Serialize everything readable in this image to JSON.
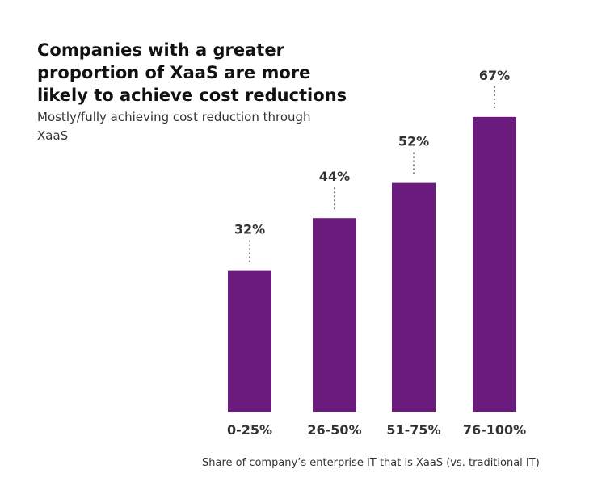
{
  "title": "Companies with a greater proportion of XaaS are more likely to achieve cost reductions",
  "subtitle": "Mostly/fully achieving cost reduction through XaaS",
  "colors": {
    "bar": "#6a1b7d",
    "label": "#333333",
    "connector": "#555555"
  },
  "chart_data": {
    "type": "bar",
    "title": "Companies with a greater proportion of XaaS are more likely to achieve cost reductions",
    "subtitle": "Mostly/fully achieving cost reduction through XaaS",
    "xlabel": "Share of company’s enterprise IT that is XaaS (vs. traditional IT)",
    "ylabel": "",
    "categories": [
      "0-25%",
      "26-50%",
      "51-75%",
      "76-100%"
    ],
    "values": [
      32,
      44,
      52,
      67
    ],
    "data_labels": [
      "32%",
      "44%",
      "52%",
      "67%"
    ],
    "ylim": [
      0,
      100
    ],
    "grid": false,
    "legend": "none"
  }
}
